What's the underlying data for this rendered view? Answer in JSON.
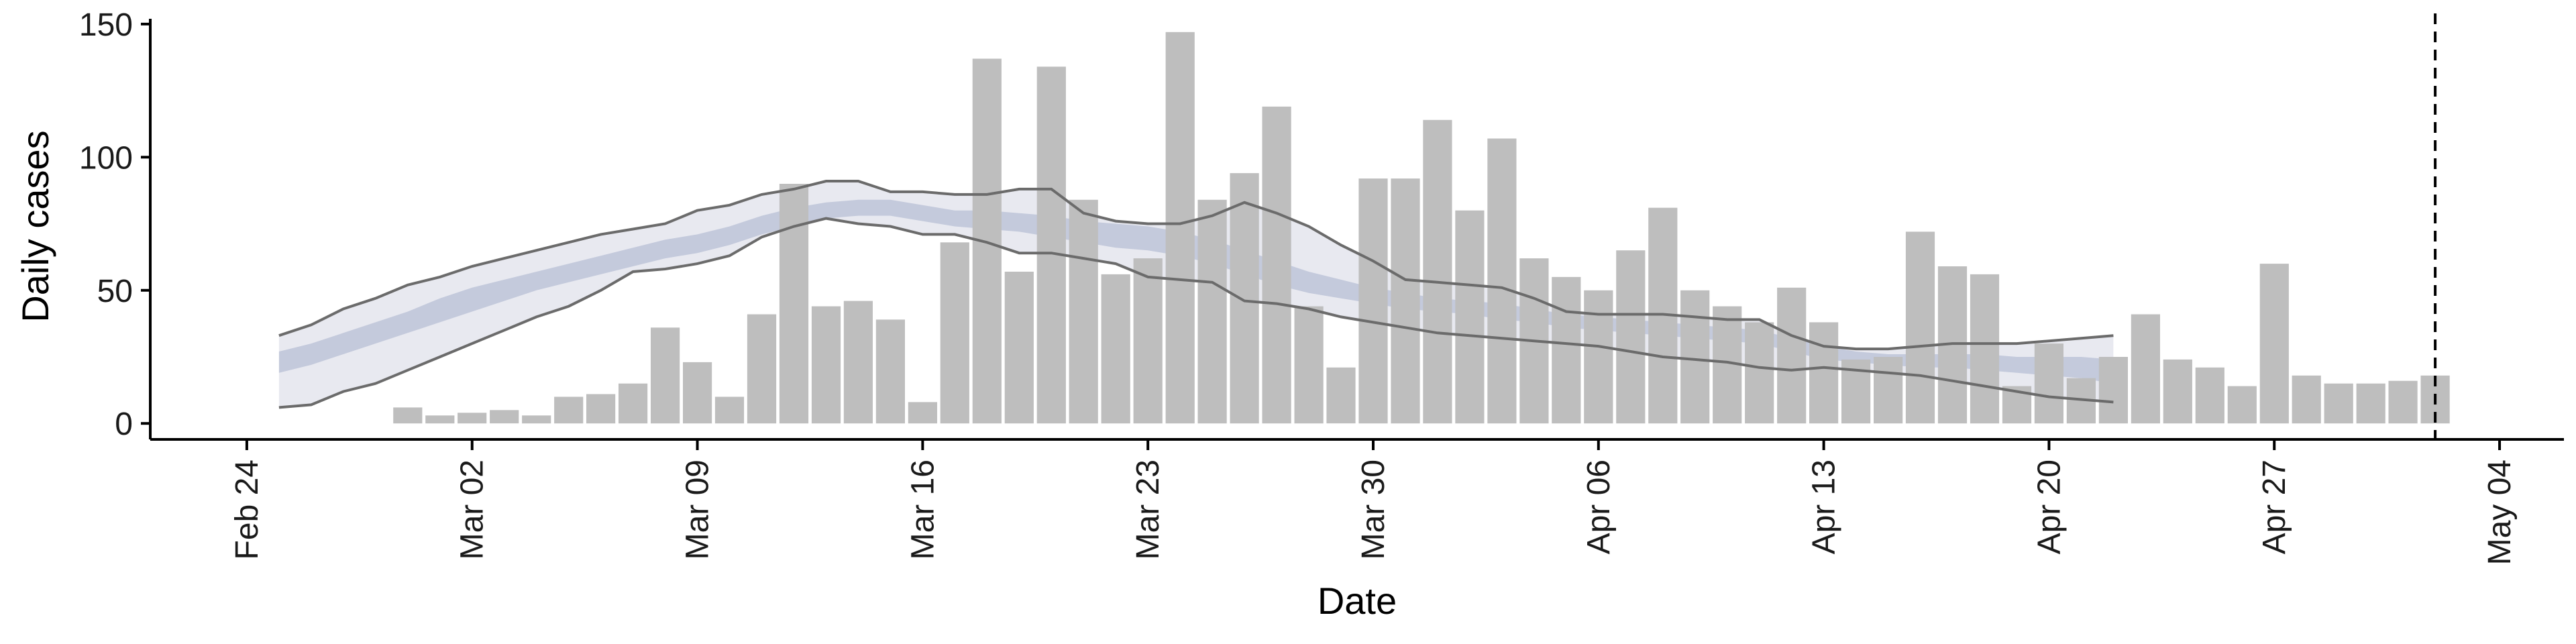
{
  "chart_data": {
    "type": "bar",
    "xlabel": "Date",
    "ylabel": "Daily cases",
    "x_axis": {
      "type": "date",
      "range": [
        "2020-02-21",
        "2020-05-06"
      ],
      "ticks": [
        "2020-02-24",
        "2020-03-02",
        "2020-03-09",
        "2020-03-16",
        "2020-03-23",
        "2020-03-30",
        "2020-04-06",
        "2020-04-13",
        "2020-04-20",
        "2020-04-27",
        "2020-05-04"
      ],
      "tick_labels": [
        "Feb 24",
        "Mar 02",
        "Mar 09",
        "Mar 16",
        "Mar 23",
        "Mar 30",
        "Apr 06",
        "Apr 13",
        "Apr 20",
        "Apr 27",
        "May 04"
      ]
    },
    "y_axis": {
      "range": [
        -6,
        154
      ],
      "ticks": [
        0,
        50,
        100,
        150
      ],
      "tick_labels": [
        "0",
        "50",
        "100",
        "150"
      ]
    },
    "grid": false,
    "legend": "none",
    "colors": {
      "bars": "#bebebe",
      "band_outer": "#e8e9f0",
      "band_inner": "#c4cadc",
      "band_lines": "#6b6b6b",
      "vline": "#000000",
      "axis": "#000000"
    },
    "bars": {
      "start_date": "2020-02-29",
      "values": [
        6,
        3,
        4,
        5,
        3,
        10,
        11,
        15,
        36,
        23,
        10,
        41,
        90,
        44,
        46,
        39,
        8,
        68,
        137,
        57,
        134,
        84,
        56,
        62,
        147,
        84,
        94,
        119,
        44,
        21,
        92,
        92,
        114,
        80,
        107,
        62,
        55,
        50,
        65,
        81,
        50,
        44,
        38,
        51,
        38,
        24,
        25,
        72,
        59,
        56,
        14,
        30,
        17,
        25,
        41,
        24,
        21,
        14,
        60,
        18,
        15,
        15,
        16,
        18
      ]
    },
    "estimate_band": {
      "start_date": "2020-02-25",
      "outer_upper": [
        33,
        37,
        43,
        47,
        52,
        55,
        59,
        62,
        65,
        68,
        71,
        73,
        75,
        80,
        82,
        86,
        88,
        91,
        91,
        87,
        87,
        86,
        86,
        88,
        88,
        79,
        76,
        75,
        75,
        78,
        83,
        79,
        74,
        67,
        61,
        54,
        53,
        52,
        51,
        47,
        42,
        41,
        41,
        41,
        40,
        39,
        39,
        33,
        29,
        28,
        28,
        29,
        30,
        30,
        30,
        31,
        32,
        33
      ],
      "inner_upper": [
        27,
        30,
        34,
        38,
        42,
        47,
        51,
        54,
        57,
        60,
        63,
        66,
        69,
        71,
        74,
        78,
        81,
        83,
        84,
        84,
        82,
        80,
        80,
        79,
        78,
        76,
        75,
        74,
        72,
        69,
        65,
        61,
        57,
        54,
        51,
        49,
        47,
        46,
        45,
        43,
        41,
        40,
        39,
        38,
        37,
        36,
        35,
        32,
        29,
        27,
        26,
        26,
        26,
        26,
        25,
        25,
        25,
        24
      ],
      "inner_lower": [
        19,
        22,
        26,
        30,
        34,
        38,
        42,
        46,
        50,
        53,
        56,
        59,
        62,
        64,
        67,
        71,
        74,
        77,
        78,
        78,
        76,
        74,
        73,
        72,
        70,
        68,
        66,
        65,
        63,
        60,
        56,
        52,
        49,
        47,
        45,
        43,
        42,
        41,
        39,
        38,
        36,
        35,
        34,
        33,
        32,
        31,
        30,
        27,
        24,
        23,
        22,
        21,
        21,
        20,
        19,
        18,
        17,
        15
      ],
      "outer_lower": [
        6,
        7,
        12,
        15,
        20,
        25,
        30,
        35,
        40,
        44,
        50,
        57,
        58,
        60,
        63,
        70,
        74,
        77,
        75,
        74,
        71,
        71,
        68,
        64,
        64,
        62,
        60,
        55,
        54,
        53,
        46,
        45,
        43,
        40,
        38,
        36,
        34,
        33,
        32,
        31,
        30,
        29,
        27,
        25,
        24,
        23,
        21,
        20,
        21,
        20,
        19,
        18,
        16,
        14,
        12,
        10,
        9,
        8
      ]
    },
    "vline_date": "2020-05-02"
  }
}
